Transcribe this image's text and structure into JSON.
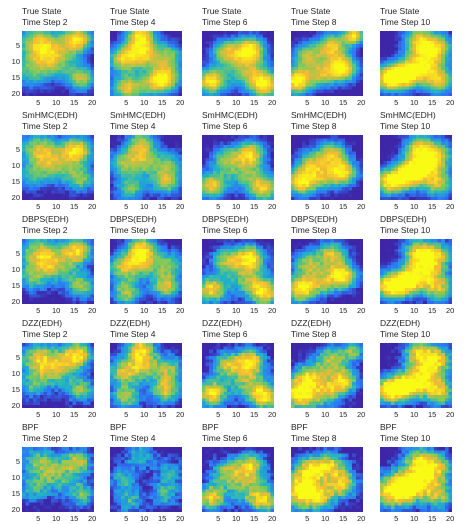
{
  "figure": {
    "background": "#ffffff"
  },
  "chart_data": {
    "type": "heatmap",
    "grid_size": 20,
    "colormap": [
      "#3e26a8",
      "#2d78f8",
      "#1fb2c9",
      "#7fca5a",
      "#f5ba33",
      "#f9fb15"
    ],
    "value_range": [
      0,
      1
    ],
    "x_ticks": [
      "5",
      "10",
      "15",
      "20"
    ],
    "y_ticks": [
      "5",
      "10",
      "15",
      "20"
    ],
    "rows": [
      {
        "method": "True State",
        "panels": [
          {
            "title": "True State",
            "subtitle": "Time Step 2",
            "blobs": [
              [
                5,
                4,
                4,
                0.75
              ],
              [
                16,
                3,
                3,
                0.9
              ],
              [
                17,
                15,
                3,
                0.7
              ],
              [
                10,
                9,
                4,
                0.6
              ],
              [
                3,
                13,
                4,
                0.5
              ]
            ]
          },
          {
            "title": "True State",
            "subtitle": "Time Step 4",
            "blobs": [
              [
                9,
                2,
                3,
                0.9
              ],
              [
                4,
                9,
                3,
                0.8
              ],
              [
                10,
                8,
                3,
                0.7
              ],
              [
                17,
                8,
                3,
                0.6
              ],
              [
                16,
                15,
                3,
                0.85
              ],
              [
                5,
                18,
                3,
                0.8
              ],
              [
                12,
                17,
                3,
                0.5
              ]
            ]
          },
          {
            "title": "True State",
            "subtitle": "Time Step 6",
            "blobs": [
              [
                14,
                6,
                3,
                0.9
              ],
              [
                7,
                7,
                3,
                0.7
              ],
              [
                3,
                16,
                3,
                0.95
              ],
              [
                13,
                13,
                4,
                0.6
              ],
              [
                18,
                17,
                3,
                0.9
              ]
            ]
          },
          {
            "title": "True State",
            "subtitle": "Time Step 8",
            "blobs": [
              [
                2,
                16,
                3,
                1.0
              ],
              [
                5,
                8,
                3,
                0.7
              ],
              [
                12,
                5,
                3,
                0.8
              ],
              [
                15,
                12,
                3,
                1.0
              ],
              [
                18,
                2,
                2,
                0.9
              ],
              [
                9,
                14,
                3,
                0.6
              ]
            ]
          },
          {
            "title": "True State",
            "subtitle": "Time Step 10",
            "blobs": [
              [
                3,
                15,
                3,
                1.0
              ],
              [
                8,
                14,
                3,
                0.85
              ],
              [
                13,
                10,
                4,
                0.8
              ],
              [
                11,
                3,
                3,
                0.7
              ],
              [
                17,
                5,
                3,
                0.6
              ],
              [
                17,
                16,
                3,
                0.7
              ]
            ]
          }
        ]
      },
      {
        "method": "SmHMC(EDH)",
        "panels": [
          {
            "title": "SmHMC(EDH)",
            "subtitle": "Time Step 2",
            "blobs": [
              [
                5,
                5,
                4,
                0.7
              ],
              [
                16,
                5,
                3,
                0.9
              ],
              [
                17,
                14,
                3,
                0.6
              ],
              [
                10,
                10,
                4,
                0.55
              ],
              [
                3,
                14,
                3,
                0.4
              ]
            ]
          },
          {
            "title": "SmHMC(EDH)",
            "subtitle": "Time Step 4",
            "blobs": [
              [
                9,
                3,
                3,
                0.7
              ],
              [
                4,
                9,
                3,
                0.6
              ],
              [
                10,
                9,
                3,
                0.55
              ],
              [
                17,
                9,
                3,
                0.5
              ],
              [
                16,
                15,
                3,
                0.7
              ],
              [
                6,
                17,
                3,
                0.6
              ]
            ]
          },
          {
            "title": "SmHMC(EDH)",
            "subtitle": "Time Step 6",
            "blobs": [
              [
                14,
                6,
                3,
                0.8
              ],
              [
                7,
                8,
                3,
                0.6
              ],
              [
                3,
                16,
                3,
                0.85
              ],
              [
                13,
                13,
                4,
                0.5
              ],
              [
                18,
                17,
                3,
                0.75
              ]
            ]
          },
          {
            "title": "SmHMC(EDH)",
            "subtitle": "Time Step 8",
            "blobs": [
              [
                3,
                15,
                3,
                0.9
              ],
              [
                6,
                9,
                3,
                0.6
              ],
              [
                12,
                6,
                3,
                0.7
              ],
              [
                15,
                12,
                3,
                0.9
              ],
              [
                9,
                14,
                3,
                0.5
              ]
            ]
          },
          {
            "title": "SmHMC(EDH)",
            "subtitle": "Time Step 10",
            "blobs": [
              [
                3,
                15,
                3,
                0.9
              ],
              [
                8,
                13,
                3,
                0.75
              ],
              [
                13,
                10,
                4,
                0.85
              ],
              [
                11,
                4,
                3,
                0.6
              ],
              [
                17,
                6,
                3,
                0.5
              ],
              [
                17,
                16,
                3,
                0.6
              ]
            ]
          }
        ]
      },
      {
        "method": "DBPS(EDH)",
        "panels": [
          {
            "title": "DBPS(EDH)",
            "subtitle": "Time Step 2",
            "blobs": [
              [
                5,
                5,
                4,
                0.7
              ],
              [
                16,
                4,
                3,
                0.85
              ],
              [
                17,
                15,
                3,
                0.65
              ],
              [
                10,
                9,
                4,
                0.55
              ],
              [
                3,
                13,
                3,
                0.45
              ]
            ]
          },
          {
            "title": "DBPS(EDH)",
            "subtitle": "Time Step 4",
            "blobs": [
              [
                9,
                3,
                3,
                0.8
              ],
              [
                4,
                9,
                3,
                0.7
              ],
              [
                10,
                8,
                3,
                0.6
              ],
              [
                17,
                8,
                3,
                0.55
              ],
              [
                16,
                15,
                3,
                0.75
              ],
              [
                5,
                17,
                3,
                0.7
              ]
            ]
          },
          {
            "title": "DBPS(EDH)",
            "subtitle": "Time Step 6",
            "blobs": [
              [
                14,
                6,
                3,
                0.85
              ],
              [
                7,
                7,
                3,
                0.65
              ],
              [
                3,
                16,
                3,
                0.9
              ],
              [
                13,
                13,
                4,
                0.55
              ],
              [
                18,
                17,
                3,
                0.85
              ]
            ]
          },
          {
            "title": "DBPS(EDH)",
            "subtitle": "Time Step 8",
            "blobs": [
              [
                3,
                16,
                3,
                0.95
              ],
              [
                5,
                8,
                3,
                0.65
              ],
              [
                12,
                5,
                3,
                0.75
              ],
              [
                15,
                12,
                3,
                0.95
              ],
              [
                9,
                14,
                3,
                0.55
              ]
            ]
          },
          {
            "title": "DBPS(EDH)",
            "subtitle": "Time Step 10",
            "blobs": [
              [
                3,
                15,
                3,
                0.95
              ],
              [
                8,
                14,
                3,
                0.8
              ],
              [
                13,
                10,
                4,
                0.8
              ],
              [
                11,
                4,
                3,
                0.65
              ],
              [
                17,
                5,
                3,
                0.55
              ],
              [
                17,
                16,
                3,
                0.65
              ]
            ]
          }
        ]
      },
      {
        "method": "DZZ(EDH)",
        "panels": [
          {
            "title": "DZZ(EDH)",
            "subtitle": "Time Step 2",
            "blobs": [
              [
                5,
                5,
                4,
                0.7
              ],
              [
                16,
                4,
                3,
                0.9
              ],
              [
                17,
                15,
                3,
                0.6
              ],
              [
                10,
                9,
                4,
                0.55
              ],
              [
                3,
                14,
                3,
                0.45
              ]
            ]
          },
          {
            "title": "DZZ(EDH)",
            "subtitle": "Time Step 4",
            "blobs": [
              [
                9,
                2,
                3,
                0.85
              ],
              [
                4,
                9,
                3,
                0.7
              ],
              [
                10,
                8,
                3,
                0.6
              ],
              [
                17,
                8,
                3,
                0.6
              ],
              [
                16,
                15,
                3,
                0.8
              ],
              [
                5,
                17,
                3,
                0.7
              ]
            ]
          },
          {
            "title": "DZZ(EDH)",
            "subtitle": "Time Step 6",
            "blobs": [
              [
                14,
                6,
                3,
                0.85
              ],
              [
                7,
                7,
                3,
                0.65
              ],
              [
                3,
                16,
                3,
                0.95
              ],
              [
                13,
                13,
                4,
                0.55
              ],
              [
                18,
                17,
                3,
                0.85
              ]
            ]
          },
          {
            "title": "DZZ(EDH)",
            "subtitle": "Time Step 8",
            "blobs": [
              [
                3,
                16,
                4,
                1.0
              ],
              [
                6,
                10,
                3,
                0.6
              ],
              [
                12,
                5,
                3,
                0.7
              ],
              [
                15,
                12,
                3,
                0.85
              ],
              [
                18,
                3,
                2,
                0.6
              ],
              [
                11,
                16,
                3,
                0.5
              ]
            ]
          },
          {
            "title": "DZZ(EDH)",
            "subtitle": "Time Step 10",
            "blobs": [
              [
                3,
                15,
                3,
                1.0
              ],
              [
                8,
                14,
                3,
                0.8
              ],
              [
                13,
                10,
                4,
                0.8
              ],
              [
                11,
                3,
                3,
                0.65
              ],
              [
                17,
                5,
                3,
                0.6
              ],
              [
                17,
                16,
                3,
                0.7
              ]
            ]
          }
        ]
      },
      {
        "method": "BPF",
        "panels": [
          {
            "title": "BPF",
            "subtitle": "Time Step 2",
            "blobs": [
              [
                5,
                5,
                4,
                0.55
              ],
              [
                16,
                5,
                3,
                0.7
              ],
              [
                17,
                15,
                3,
                0.55
              ],
              [
                10,
                10,
                4,
                0.45
              ],
              [
                3,
                14,
                3,
                0.4
              ]
            ]
          },
          {
            "title": "BPF",
            "subtitle": "Time Step 4",
            "blobs": [
              [
                9,
                3,
                3,
                0.5
              ],
              [
                4,
                10,
                3,
                0.45
              ],
              [
                17,
                8,
                3,
                0.4
              ],
              [
                16,
                15,
                3,
                0.5
              ],
              [
                6,
                17,
                3,
                0.5
              ]
            ]
          },
          {
            "title": "BPF",
            "subtitle": "Time Step 6",
            "blobs": [
              [
                14,
                6,
                3,
                0.75
              ],
              [
                7,
                8,
                3,
                0.6
              ],
              [
                3,
                16,
                3,
                0.85
              ],
              [
                13,
                13,
                4,
                0.55
              ],
              [
                18,
                17,
                3,
                0.75
              ]
            ]
          },
          {
            "title": "BPF",
            "subtitle": "Time Step 8",
            "blobs": [
              [
                3,
                14,
                4,
                1.0
              ],
              [
                6,
                7,
                3,
                0.8
              ],
              [
                12,
                6,
                3,
                0.7
              ],
              [
                15,
                12,
                3,
                0.8
              ],
              [
                9,
                16,
                3,
                0.6
              ]
            ]
          },
          {
            "title": "BPF",
            "subtitle": "Time Step 10",
            "blobs": [
              [
                4,
                14,
                4,
                0.9
              ],
              [
                8,
                13,
                3,
                0.7
              ],
              [
                13,
                10,
                4,
                0.75
              ],
              [
                11,
                4,
                3,
                0.6
              ],
              [
                17,
                6,
                3,
                0.5
              ],
              [
                17,
                16,
                3,
                0.6
              ]
            ]
          }
        ]
      }
    ]
  }
}
